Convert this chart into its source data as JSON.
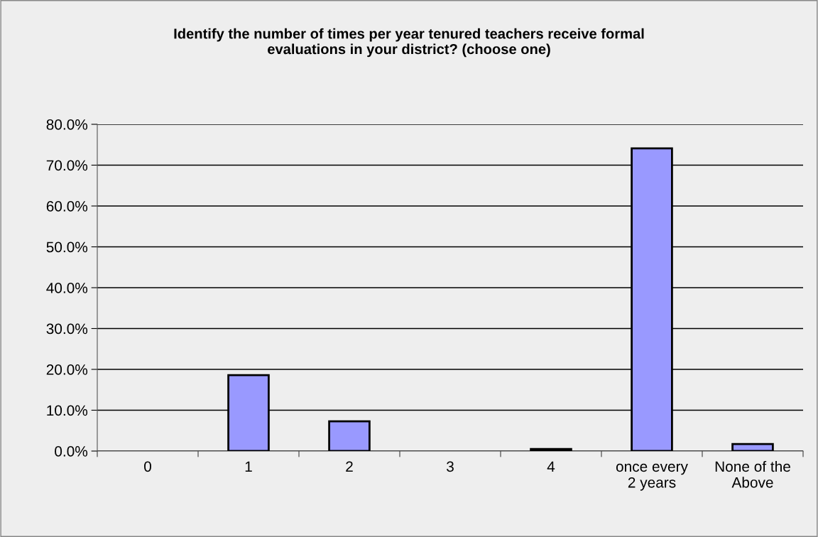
{
  "chart_data": {
    "type": "bar",
    "title": "Identify the number of times per year tenured teachers receive formal\nevaluations in your district? (choose one)",
    "categories": [
      "0",
      "1",
      "2",
      "3",
      "4",
      "once every\n2 years",
      "None of the\nAbove"
    ],
    "values": [
      0,
      18.6,
      7.3,
      0,
      0.5,
      74.1,
      1.7
    ],
    "color": "#9999ff",
    "ylim": [
      0,
      80
    ],
    "yticks": [
      {
        "value": 0,
        "label": "0.0%"
      },
      {
        "value": 10,
        "label": "10.0%"
      },
      {
        "value": 20,
        "label": "20.0%"
      },
      {
        "value": 30,
        "label": "30.0%"
      },
      {
        "value": 40,
        "label": "40.0%"
      },
      {
        "value": 50,
        "label": "50.0%"
      },
      {
        "value": 60,
        "label": "60.0%"
      },
      {
        "value": 70,
        "label": "70.0%"
      },
      {
        "value": 80,
        "label": "80.0%"
      }
    ],
    "grid": "y"
  }
}
